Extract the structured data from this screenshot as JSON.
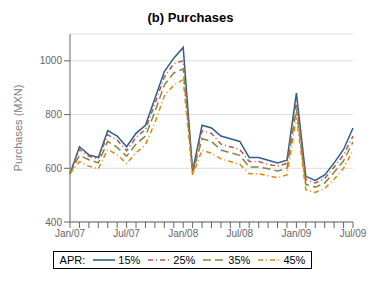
{
  "chart_data": {
    "type": "line",
    "title": "(b) Purchases",
    "y_label": "Purchases (MXN)",
    "categories": [
      "Jan/07",
      null,
      null,
      null,
      null,
      null,
      "Jul/07",
      null,
      null,
      null,
      null,
      null,
      "Jan/08",
      null,
      null,
      null,
      null,
      null,
      "Jul/08",
      null,
      null,
      null,
      null,
      null,
      "Jan/09",
      null,
      null,
      null,
      null,
      null,
      "Jul/09"
    ],
    "series": [
      {
        "name": "15%",
        "color": "#2c5f8a",
        "line_style": "solid",
        "values": [
          580,
          680,
          650,
          640,
          740,
          720,
          680,
          730,
          760,
          860,
          960,
          1010,
          1050,
          590,
          760,
          750,
          720,
          710,
          700,
          640,
          640,
          630,
          620,
          630,
          880,
          570,
          555,
          575,
          620,
          670,
          750
        ]
      },
      {
        "name": "25%",
        "color": "#c0504d",
        "line_style": "dashdot",
        "values": [
          580,
          670,
          645,
          635,
          725,
          705,
          665,
          715,
          745,
          840,
          940,
          990,
          1000,
          585,
          740,
          730,
          690,
          680,
          670,
          625,
          625,
          615,
          608,
          618,
          850,
          558,
          545,
          562,
          605,
          650,
          720
        ]
      },
      {
        "name": "35%",
        "color": "#7a8c3a",
        "line_style": "dashed",
        "values": [
          580,
          648,
          632,
          620,
          700,
          678,
          645,
          690,
          720,
          810,
          910,
          955,
          970,
          580,
          710,
          700,
          668,
          658,
          648,
          605,
          605,
          598,
          590,
          600,
          820,
          540,
          530,
          545,
          585,
          628,
          698
        ]
      },
      {
        "name": "45%",
        "color": "#e8820a",
        "line_style": "dashdot",
        "values": [
          580,
          625,
          608,
          598,
          670,
          650,
          618,
          658,
          688,
          770,
          870,
          910,
          930,
          575,
          668,
          655,
          635,
          625,
          615,
          580,
          580,
          572,
          565,
          575,
          790,
          520,
          510,
          525,
          560,
          600,
          668
        ]
      }
    ],
    "ylim": [
      400,
      1100
    ],
    "yticks": [
      400,
      600,
      800,
      1000
    ],
    "grid": true,
    "legend": "bottom",
    "legend_title": "APR:"
  }
}
